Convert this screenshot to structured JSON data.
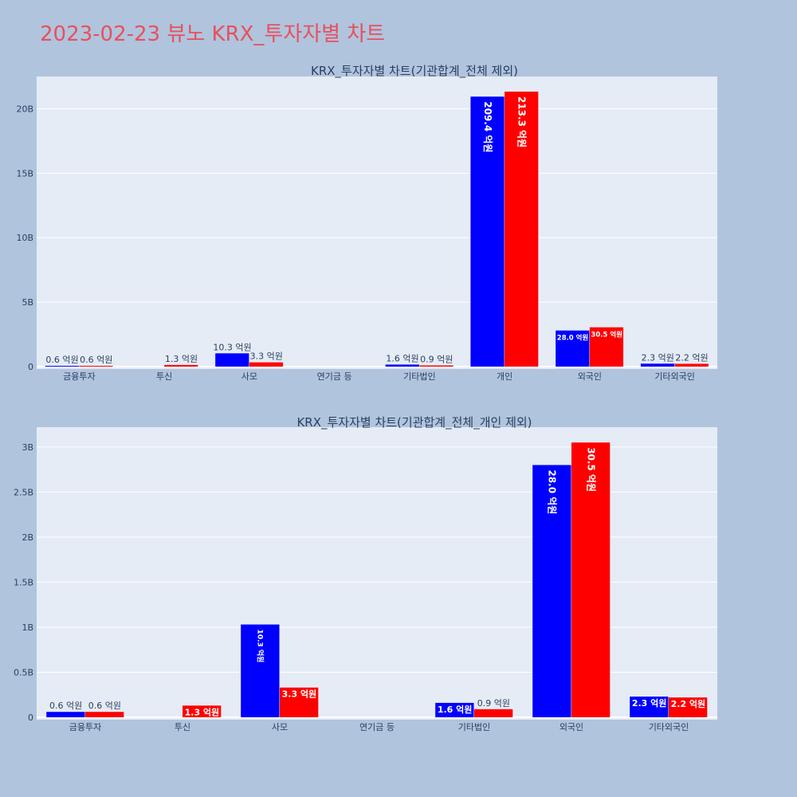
{
  "page": {
    "title": "2023-02-23 뷰노 KRX_투자자별 차트"
  },
  "colors": {
    "sell": "#0000ff",
    "buy": "#ff0000",
    "plot_bg": "#e5ecf6",
    "paper_bg": "#b0c4de",
    "title": "#e8505b"
  },
  "chart_data": [
    {
      "type": "bar",
      "title": "KRX_투자자별 차트(기관합계_전체 제외)",
      "categories": [
        "금융투자",
        "투신",
        "사모",
        "연기금 등",
        "기타법인",
        "개인",
        "외국인",
        "기타외국인"
      ],
      "series": [
        {
          "color": "#0000ff",
          "values": [
            60000000,
            0,
            1030000000,
            0,
            160000000,
            20940000000,
            2800000000,
            230000000
          ],
          "labels": [
            "0.6 억원",
            "",
            "10.3 억원",
            "",
            "1.6 억원",
            "209.4 억원",
            "28.0 억원",
            "2.3 억원"
          ]
        },
        {
          "color": "#ff0000",
          "values": [
            60000000,
            130000000,
            330000000,
            0,
            90000000,
            21330000000,
            3050000000,
            220000000
          ],
          "labels": [
            "0.6 억원",
            "1.3 억원",
            "3.3 억원",
            "",
            "0.9 억원",
            "213.3 억원",
            "30.5 억원",
            "2.2 억원"
          ]
        }
      ],
      "ylim": [
        0,
        22500000000
      ],
      "yticks": [
        0,
        5000000000,
        10000000000,
        15000000000,
        20000000000
      ],
      "ytick_labels": [
        "0",
        "5B",
        "10B",
        "15B",
        "20B"
      ],
      "grid": true
    },
    {
      "type": "bar",
      "title": "KRX_투자자별 차트(기관합계_전체_개인 제외)",
      "categories": [
        "금융투자",
        "투신",
        "사모",
        "연기금 등",
        "기타법인",
        "외국인",
        "기타외국인"
      ],
      "series": [
        {
          "color": "#0000ff",
          "values": [
            60000000,
            0,
            1030000000,
            0,
            160000000,
            2800000000,
            230000000
          ],
          "labels": [
            "0.6 억원",
            "",
            "10.3 억원",
            "",
            "1.6 억원",
            "28.0 억원",
            "2.3 억원"
          ]
        },
        {
          "color": "#ff0000",
          "values": [
            60000000,
            130000000,
            330000000,
            0,
            90000000,
            3050000000,
            220000000
          ],
          "labels": [
            "0.6 억원",
            "1.3 억원",
            "3.3 억원",
            "",
            "0.9 억원",
            "30.5 억원",
            "2.2 억원"
          ]
        }
      ],
      "ylim": [
        0,
        3220000000
      ],
      "yticks": [
        0,
        500000000,
        1000000000,
        1500000000,
        2000000000,
        2500000000,
        3000000000
      ],
      "ytick_labels": [
        "0",
        "0.5B",
        "1B",
        "1.5B",
        "2B",
        "2.5B",
        "3B"
      ],
      "grid": true
    }
  ]
}
